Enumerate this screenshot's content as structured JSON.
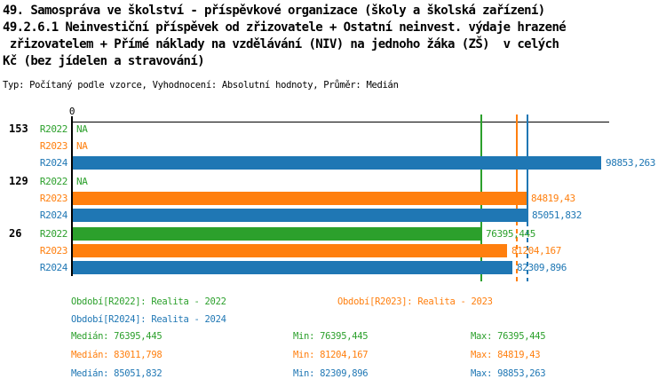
{
  "title": {
    "line1": "49. Samospráva ve školství - příspěvkové organizace (školy a školská zařízení)",
    "line2": "49.2.6.1 Neinvestiční příspěvek od zřizovatele + Ostatní neinvest. výdaje hrazené",
    "line3": " zřizovatelem + Přímé náklady na vzdělávání (NIV) na jednoho žáka (ZŠ)  v celých",
    "line4": "Kč (bez jídelen a stravování)",
    "subtitle": "Typ: Počítaný podle vzorce, Vyhodnocení: Absolutní hodnoty, Průměr: Medián"
  },
  "chart_data": {
    "type": "bar",
    "orientation": "horizontal",
    "axis": {
      "zero_label": "0",
      "max_value": 98853.263,
      "grid": false
    },
    "series_colors": {
      "R2022": "#2ca02c",
      "R2023": "#ff7f0e",
      "R2024": "#1f77b4"
    },
    "groups": [
      {
        "label": "153",
        "bars": [
          {
            "series": "R2022",
            "value": null,
            "display": "NA"
          },
          {
            "series": "R2023",
            "value": null,
            "display": "NA"
          },
          {
            "series": "R2024",
            "value": 98853.263,
            "display": "98853,263"
          }
        ]
      },
      {
        "label": "129",
        "bars": [
          {
            "series": "R2022",
            "value": null,
            "display": "NA"
          },
          {
            "series": "R2023",
            "value": 84819.43,
            "display": "84819,43"
          },
          {
            "series": "R2024",
            "value": 85051.832,
            "display": "85051,832"
          }
        ]
      },
      {
        "label": "26",
        "bars": [
          {
            "series": "R2022",
            "value": 76395.445,
            "display": "76395,445"
          },
          {
            "series": "R2023",
            "value": 81204.167,
            "display": "81204,167"
          },
          {
            "series": "R2024",
            "value": 82309.896,
            "display": "82309,896"
          }
        ]
      }
    ],
    "median_lines": [
      {
        "series": "R2022",
        "value": 76395.445
      },
      {
        "series": "R2023",
        "value": 83011.798
      },
      {
        "series": "R2024",
        "value": 85051.832
      }
    ]
  },
  "legend": {
    "r2022": "Období[R2022]: Realita - 2022",
    "r2023": "Období[R2023]: Realita - 2023",
    "r2024": "Období[R2024]: Realita - 2024"
  },
  "stats": {
    "rows": [
      {
        "series": "R2022",
        "median": "Medián: 76395,445",
        "min": "Min: 76395,445",
        "max": "Max: 76395,445"
      },
      {
        "series": "R2023",
        "median": "Medián: 83011,798",
        "min": "Min: 81204,167",
        "max": "Max: 84819,43"
      },
      {
        "series": "R2024",
        "median": "Medián: 85051,832",
        "min": "Min: 82309,896",
        "max": "Max: 98853,263"
      }
    ]
  }
}
